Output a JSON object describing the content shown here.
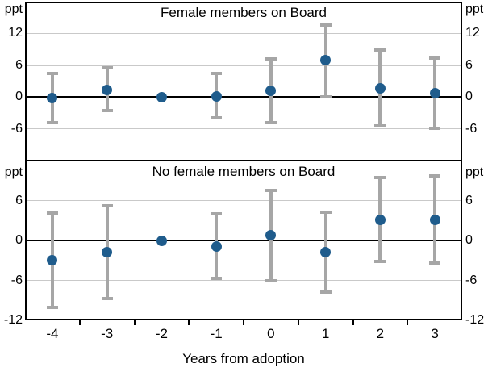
{
  "figure": {
    "x_axis_title": "Years from adoption",
    "unit_label": "ppt",
    "colors": {
      "dot": "#1f5c8c",
      "error_bar": "#a6a6a6",
      "gridline": "#c9c9c9",
      "axis": "#000000",
      "background": "#ffffff",
      "text": "#000000"
    }
  },
  "chart_data": [
    {
      "type": "scatter",
      "title": "Female members on Board",
      "ylabel": "ppt",
      "xlabel": "Years from adoption",
      "ylim": [
        -12,
        18
      ],
      "yticks": [
        12,
        6,
        0,
        -6
      ],
      "grid": true,
      "categories": [
        "-4",
        "-3",
        "-2",
        "-1",
        "0",
        "1",
        "2",
        "3"
      ],
      "series": [
        {
          "name": "point_estimate",
          "values": [
            -0.2,
            1.4,
            0.0,
            0.1,
            1.2,
            6.9,
            1.7,
            0.7
          ]
        },
        {
          "name": "ci_low",
          "values": [
            -4.8,
            -2.5,
            null,
            -4.0,
            -4.8,
            0.1,
            -5.4,
            -5.9
          ]
        },
        {
          "name": "ci_high",
          "values": [
            4.4,
            5.5,
            null,
            4.4,
            7.2,
            13.6,
            8.8,
            7.4
          ]
        }
      ]
    },
    {
      "type": "scatter",
      "title": "No female members on Board",
      "ylabel": "ppt",
      "xlabel": "Years from adoption",
      "ylim": [
        -12,
        12
      ],
      "yticks": [
        6,
        0,
        -6,
        -12
      ],
      "grid": true,
      "categories": [
        "-4",
        "-3",
        "-2",
        "-1",
        "0",
        "1",
        "2",
        "3"
      ],
      "series": [
        {
          "name": "point_estimate",
          "values": [
            -3.0,
            -1.8,
            0.0,
            -0.9,
            0.8,
            -1.8,
            3.1,
            3.1
          ]
        },
        {
          "name": "ci_low",
          "values": [
            -10.0,
            -8.7,
            null,
            -5.7,
            -6.0,
            -7.7,
            -3.2,
            -3.4
          ]
        },
        {
          "name": "ci_high",
          "values": [
            4.1,
            5.2,
            null,
            4.0,
            7.5,
            4.3,
            9.5,
            9.7
          ]
        }
      ]
    }
  ]
}
